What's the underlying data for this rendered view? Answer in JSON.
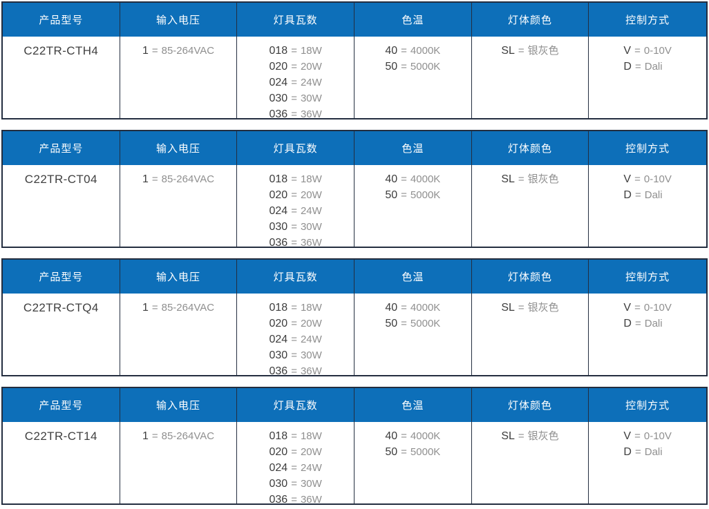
{
  "theme": {
    "header_bg": "#0d6fb9",
    "header_text": "#ffffff",
    "border": "#232d3f",
    "code_color": "#3d3d3d",
    "value_color": "#8f8f8f",
    "model_color": "#3f3f3f",
    "page_bg": "#ffffff"
  },
  "separator": "=",
  "columns": [
    {
      "key": "model",
      "label": "产品型号"
    },
    {
      "key": "voltage",
      "label": "输入电压"
    },
    {
      "key": "wattage",
      "label": "灯具瓦数"
    },
    {
      "key": "cct",
      "label": "色温"
    },
    {
      "key": "body_color",
      "label": "灯体颜色"
    },
    {
      "key": "control",
      "label": "控制方式"
    }
  ],
  "options": {
    "voltage": [
      {
        "code": "1",
        "value": "85-264VAC"
      }
    ],
    "wattage": [
      {
        "code": "018",
        "value": "18W"
      },
      {
        "code": "020",
        "value": "20W"
      },
      {
        "code": "024",
        "value": "24W"
      },
      {
        "code": "030",
        "value": "30W"
      },
      {
        "code": "036",
        "value": "36W"
      }
    ],
    "cct": [
      {
        "code": "40",
        "value": "4000K"
      },
      {
        "code": "50",
        "value": "5000K"
      }
    ],
    "body_color": [
      {
        "code": "SL",
        "value": "银灰色"
      }
    ],
    "control": [
      {
        "code": "V",
        "value": "0-10V"
      },
      {
        "code": "D",
        "value": "Dali"
      }
    ]
  },
  "tables": [
    {
      "model": "C22TR-CTH4"
    },
    {
      "model": "C22TR-CT04"
    },
    {
      "model": "C22TR-CTQ4"
    },
    {
      "model": "C22TR-CT14"
    }
  ]
}
